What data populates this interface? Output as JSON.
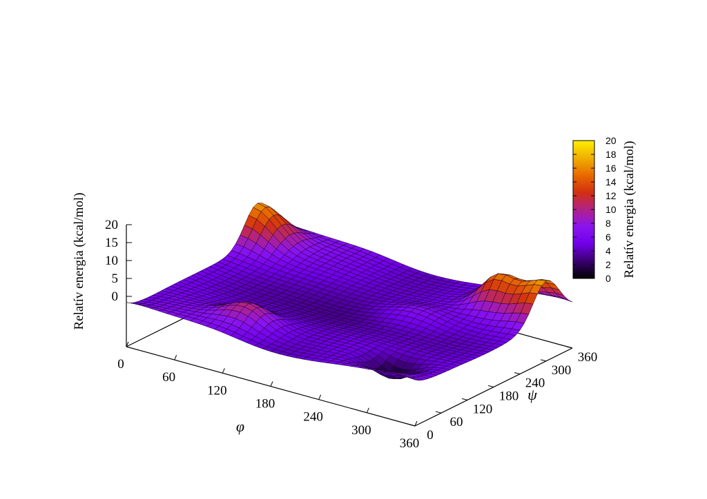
{
  "chart_data": {
    "type": "surface",
    "x_axis": {
      "label": "φ",
      "range": [
        0,
        360
      ],
      "ticks": [
        "0",
        "60",
        "120",
        "180",
        "240",
        "300",
        "360"
      ]
    },
    "y_axis": {
      "label": "ψ",
      "range": [
        0,
        360
      ],
      "ticks": [
        "0",
        "60",
        "120",
        "180",
        "240",
        "300",
        "360"
      ]
    },
    "z_axis": {
      "label": "Relatív energia (kcal/mol)",
      "range": [
        0,
        20
      ],
      "ticks": [
        "0",
        "5",
        "10",
        "15",
        "20"
      ]
    },
    "colorbar": {
      "label": "Relatív energia (kcal/mol)",
      "range": [
        0,
        20
      ],
      "ticks": [
        "0",
        "2",
        "4",
        "6",
        "8",
        "10",
        "12",
        "14",
        "16",
        "18",
        "20"
      ],
      "palette": [
        "#000000",
        "#3a0070",
        "#7000e8",
        "#8a14f0",
        "#b02288",
        "#d23010",
        "#e86a00",
        "#f0b000",
        "#ffee00"
      ]
    },
    "grid": false,
    "legend": "right",
    "surface_grid_resolution_deg": 10,
    "surface_features": [
      {
        "phi": 300,
        "psi": 60,
        "energy": 0,
        "kind": "global minimum"
      },
      {
        "phi": 180,
        "psi": 180,
        "energy": 2,
        "kind": "broad basin"
      },
      {
        "phi": 0,
        "psi": 300,
        "energy": 17,
        "kind": "peak"
      },
      {
        "phi": 300,
        "psi": 300,
        "energy": 14,
        "kind": "peak"
      },
      {
        "phi": 120,
        "psi": 60,
        "energy": 11,
        "kind": "ridge"
      }
    ]
  }
}
